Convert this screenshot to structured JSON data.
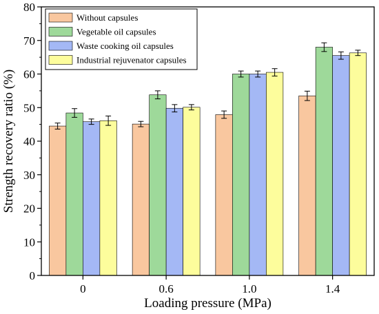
{
  "chart_data": {
    "type": "bar",
    "title": "",
    "xlabel": "Loading pressure (MPa)",
    "ylabel": "Strength recovery ratio (%)",
    "ylim": [
      0,
      80
    ],
    "yticks": [
      0,
      10,
      20,
      30,
      40,
      50,
      60,
      70,
      80
    ],
    "categories": [
      "0",
      "0.6",
      "1.0",
      "1.4"
    ],
    "legend_position": "top-left",
    "series": [
      {
        "name": "Without capsules",
        "color": "#f9c79f",
        "values": [
          44.5,
          45.1,
          47.9,
          53.5
        ],
        "errors": [
          0.9,
          0.8,
          1.1,
          1.4
        ]
      },
      {
        "name": "Vegetable oil capsules",
        "color": "#9ed99a",
        "values": [
          48.4,
          53.8,
          60.0,
          68.0
        ],
        "errors": [
          1.3,
          1.2,
          0.9,
          1.3
        ]
      },
      {
        "name": "Waste cooking oil capsules",
        "color": "#a4b8f5",
        "values": [
          45.8,
          49.8,
          60.0,
          65.5
        ],
        "errors": [
          0.8,
          1.1,
          0.9,
          1.1
        ]
      },
      {
        "name": "Industrial rejuvenator capsules",
        "color": "#fdfd9c",
        "values": [
          46.1,
          50.1,
          60.5,
          66.3
        ],
        "errors": [
          1.4,
          0.8,
          1.1,
          0.8
        ]
      }
    ]
  }
}
